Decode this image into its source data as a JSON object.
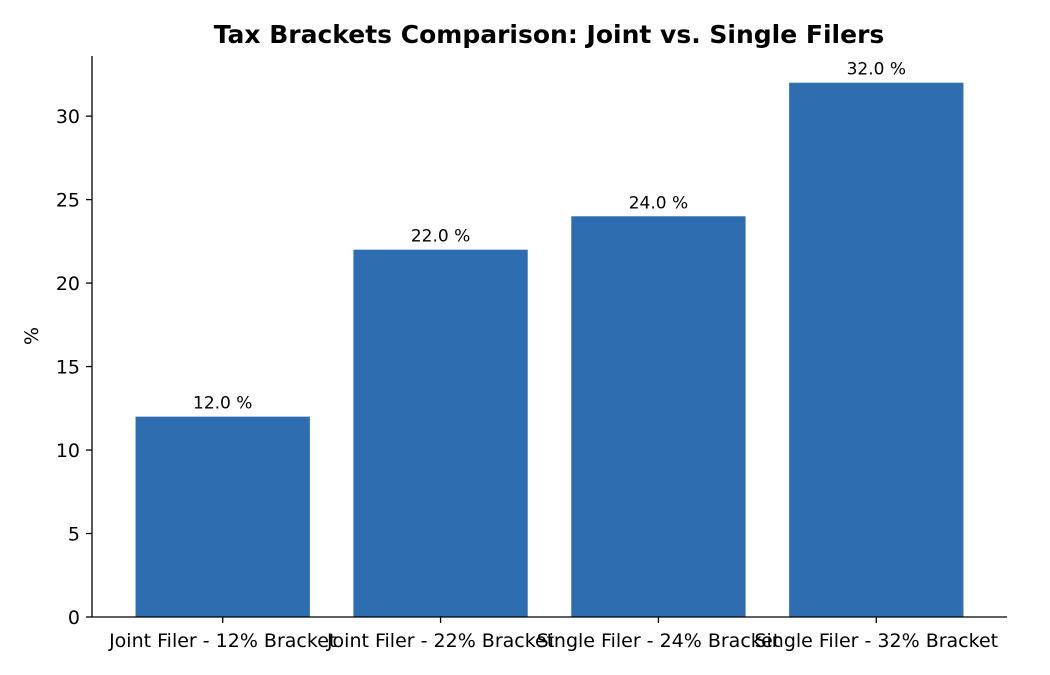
{
  "chart_data": {
    "type": "bar",
    "title": "Tax Brackets Comparison: Joint vs. Single Filers",
    "xlabel": "",
    "ylabel": "%",
    "categories": [
      "Joint Filer - 12% Bracket",
      "Joint Filer - 22% Bracket",
      "Single Filer - 24% Bracket",
      "Single Filer - 32% Bracket"
    ],
    "values": [
      12.0,
      22.0,
      24.0,
      32.0
    ],
    "value_labels": [
      "12.0 %",
      "22.0 %",
      "24.0 %",
      "32.0 %"
    ],
    "y_ticks": [
      0,
      5,
      10,
      15,
      20,
      25,
      30
    ],
    "ylim": [
      0,
      33.6
    ],
    "grid": false,
    "bar_color": "#2d6db0"
  }
}
